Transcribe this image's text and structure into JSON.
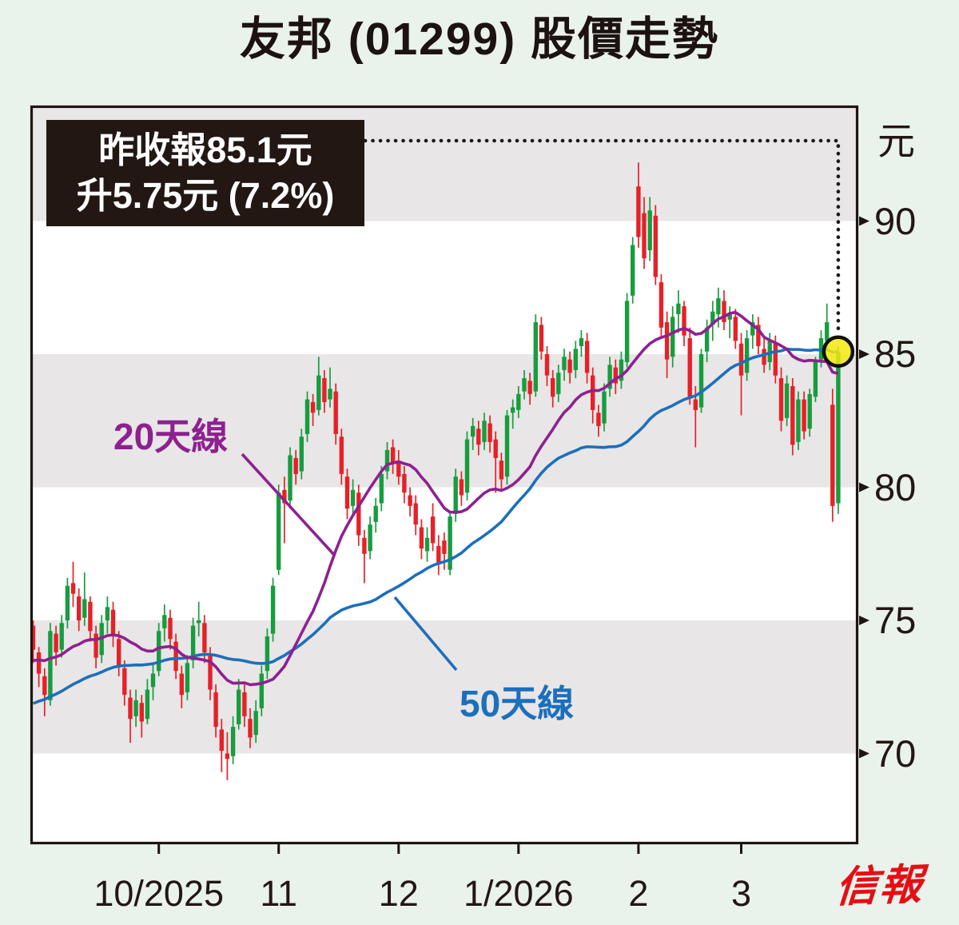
{
  "header": {
    "title": "友邦 (01299) 股價走勢"
  },
  "annotation": {
    "line1": "昨收報85.1元",
    "line2": "升5.75元 (7.2%)"
  },
  "axis": {
    "unit": "元"
  },
  "ma_labels": {
    "ma20": "20天線",
    "ma50": "50天線"
  },
  "logo": {
    "text": "信報"
  },
  "colors": {
    "background": "#eaf2ec",
    "plot_bg": "#ffffff",
    "band_gray": "#e8e6e6",
    "up_candle": "#189c3f",
    "down_candle": "#e52129",
    "ma20": "#8d2190",
    "ma50": "#1c6fbc",
    "axis_ink": "#1d1511",
    "annotation_bg": "#221713",
    "annotation_text": "#ffffff",
    "highlight_fill": "#f4e90e",
    "highlight_stroke": "#111111",
    "logo_red": "#e50f13"
  },
  "chart_data": {
    "type": "candlestick",
    "title": "友邦 (01299) 股價走勢",
    "ylabel": "元",
    "y_ticks": [
      90,
      85,
      80,
      75,
      70
    ],
    "ylim_approx": [
      66.5,
      94.4
    ],
    "grid": "alternating horizontal gray bands between 5-unit price levels",
    "legend_position": "labels with pointer lines inside plot",
    "last_close": 85.1,
    "change": "+5.75",
    "change_pct": "7.2%",
    "month_ticks": [
      {
        "label": "10/2025",
        "day": 22
      },
      {
        "label": "11",
        "day": 43
      },
      {
        "label": "12",
        "day": 64
      },
      {
        "label": "1/2026",
        "day": 85
      },
      {
        "label": "2",
        "day": 106
      },
      {
        "label": "3",
        "day": 124
      }
    ],
    "overlays": [
      {
        "name": "20天線",
        "period": 20,
        "color": "#8d2190"
      },
      {
        "name": "50天線",
        "period": 50,
        "color": "#1c6fbc"
      }
    ],
    "highlight": {
      "day": 141,
      "price": 85.1,
      "marker": "yellow-circle"
    },
    "ohlc": [
      [
        74.8,
        75.0,
        73.4,
        73.9
      ],
      [
        73.8,
        74.0,
        72.5,
        73.0
      ],
      [
        72.9,
        73.2,
        71.4,
        72.2
      ],
      [
        72.0,
        74.9,
        71.8,
        74.6
      ],
      [
        74.5,
        74.8,
        73.3,
        73.8
      ],
      [
        73.9,
        75.2,
        73.6,
        74.9
      ],
      [
        75.0,
        76.6,
        74.7,
        76.3
      ],
      [
        76.4,
        77.2,
        75.5,
        76.0
      ],
      [
        75.9,
        76.2,
        74.6,
        75.0
      ],
      [
        75.1,
        76.8,
        74.8,
        75.8
      ],
      [
        75.7,
        75.9,
        74.2,
        74.6
      ],
      [
        74.5,
        74.8,
        73.2,
        73.6
      ],
      [
        73.7,
        75.2,
        73.4,
        74.9
      ],
      [
        75.0,
        75.9,
        74.5,
        75.5
      ],
      [
        75.4,
        75.7,
        74.0,
        74.4
      ],
      [
        74.3,
        74.6,
        72.9,
        73.3
      ],
      [
        73.2,
        73.5,
        71.8,
        72.2
      ],
      [
        72.1,
        72.4,
        70.4,
        71.3
      ],
      [
        71.4,
        72.4,
        71.0,
        72.0
      ],
      [
        71.9,
        72.2,
        70.6,
        71.2
      ],
      [
        71.3,
        72.8,
        71.1,
        72.4
      ],
      [
        72.5,
        73.4,
        72.0,
        73.0
      ],
      [
        73.1,
        74.9,
        72.9,
        74.6
      ],
      [
        74.7,
        75.6,
        74.2,
        75.2
      ],
      [
        75.1,
        75.4,
        73.9,
        74.3
      ],
      [
        74.2,
        74.5,
        72.8,
        73.1
      ],
      [
        73.0,
        73.3,
        71.7,
        72.2
      ],
      [
        72.3,
        73.7,
        72.0,
        73.4
      ],
      [
        73.5,
        75.1,
        73.2,
        74.8
      ],
      [
        74.9,
        75.7,
        74.4,
        75.0
      ],
      [
        74.9,
        75.2,
        73.4,
        73.8
      ],
      [
        73.7,
        74.0,
        72.0,
        72.4
      ],
      [
        72.3,
        72.6,
        70.6,
        71.0
      ],
      [
        70.9,
        71.3,
        69.3,
        70.1
      ],
      [
        70.0,
        70.8,
        69.0,
        69.8
      ],
      [
        69.9,
        71.4,
        69.6,
        71.0
      ],
      [
        71.1,
        72.8,
        70.9,
        72.4
      ],
      [
        72.3,
        72.6,
        71.0,
        71.4
      ],
      [
        71.3,
        71.7,
        70.2,
        70.6
      ],
      [
        70.7,
        72.0,
        70.4,
        71.6
      ],
      [
        71.7,
        73.3,
        71.4,
        73.0
      ],
      [
        73.1,
        74.7,
        72.8,
        74.4
      ],
      [
        74.5,
        76.6,
        74.2,
        76.3
      ],
      [
        76.9,
        80.1,
        76.7,
        79.8
      ],
      [
        79.9,
        80.4,
        77.9,
        79.4
      ],
      [
        79.5,
        81.5,
        79.2,
        81.2
      ],
      [
        81.1,
        81.4,
        80.1,
        80.5
      ],
      [
        80.6,
        82.2,
        80.3,
        81.9
      ],
      [
        82.0,
        83.6,
        81.7,
        83.3
      ],
      [
        83.2,
        83.5,
        82.3,
        82.8
      ],
      [
        82.9,
        84.9,
        82.7,
        84.2
      ],
      [
        84.1,
        84.4,
        82.8,
        83.2
      ],
      [
        83.3,
        84.5,
        83.0,
        83.7
      ],
      [
        83.6,
        83.9,
        81.6,
        82.0
      ],
      [
        81.9,
        82.2,
        80.1,
        80.5
      ],
      [
        80.4,
        80.7,
        78.8,
        79.2
      ],
      [
        79.3,
        80.3,
        78.9,
        79.9
      ],
      [
        79.8,
        80.1,
        77.8,
        78.2
      ],
      [
        78.1,
        78.4,
        76.4,
        77.5
      ],
      [
        77.6,
        78.9,
        77.3,
        78.6
      ],
      [
        78.7,
        79.6,
        78.3,
        79.3
      ],
      [
        79.4,
        80.8,
        79.1,
        80.5
      ],
      [
        80.6,
        81.7,
        80.3,
        81.4
      ],
      [
        81.5,
        81.8,
        80.5,
        80.9
      ],
      [
        81.0,
        81.4,
        80.1,
        80.4
      ],
      [
        80.5,
        80.8,
        79.4,
        79.8
      ],
      [
        79.7,
        80.0,
        78.9,
        79.3
      ],
      [
        79.4,
        79.7,
        78.2,
        78.6
      ],
      [
        78.5,
        78.8,
        77.3,
        77.7
      ],
      [
        77.6,
        78.5,
        77.2,
        78.1
      ],
      [
        78.9,
        79.4,
        77.6,
        77.9
      ],
      [
        77.8,
        78.2,
        76.7,
        77.1
      ],
      [
        78.0,
        78.3,
        76.9,
        77.5
      ],
      [
        76.9,
        79.1,
        76.7,
        78.9
      ],
      [
        79.0,
        80.7,
        78.7,
        80.4
      ],
      [
        80.3,
        80.6,
        79.3,
        79.7
      ],
      [
        79.8,
        82.1,
        79.5,
        81.8
      ],
      [
        81.9,
        82.6,
        81.4,
        82.3
      ],
      [
        82.2,
        82.5,
        81.2,
        81.6
      ],
      [
        81.7,
        82.8,
        81.4,
        82.5
      ],
      [
        82.4,
        82.7,
        81.3,
        81.7
      ],
      [
        81.8,
        82.1,
        79.8,
        81.1
      ],
      [
        81.0,
        81.3,
        79.9,
        80.3
      ],
      [
        80.4,
        82.9,
        80.1,
        82.7
      ],
      [
        82.8,
        83.3,
        82.2,
        83.0
      ],
      [
        82.9,
        83.8,
        82.6,
        83.5
      ],
      [
        83.6,
        84.4,
        83.3,
        84.1
      ],
      [
        84.0,
        84.3,
        83.1,
        83.5
      ],
      [
        83.6,
        86.5,
        83.4,
        86.2
      ],
      [
        86.1,
        86.4,
        84.8,
        85.1
      ],
      [
        85.0,
        85.3,
        83.8,
        84.2
      ],
      [
        84.1,
        84.4,
        83.0,
        83.4
      ],
      [
        83.5,
        84.6,
        83.2,
        84.3
      ],
      [
        84.4,
        85.2,
        84.0,
        84.9
      ],
      [
        84.8,
        85.1,
        83.9,
        84.3
      ],
      [
        84.4,
        85.5,
        84.1,
        85.2
      ],
      [
        85.3,
        85.9,
        84.9,
        85.6
      ],
      [
        85.5,
        85.8,
        83.9,
        84.3
      ],
      [
        84.2,
        84.5,
        82.4,
        82.9
      ],
      [
        82.8,
        83.1,
        81.9,
        82.3
      ],
      [
        82.4,
        83.9,
        82.1,
        83.6
      ],
      [
        83.7,
        84.9,
        83.4,
        84.6
      ],
      [
        84.5,
        84.8,
        83.5,
        83.9
      ],
      [
        84.0,
        85.1,
        83.7,
        84.8
      ],
      [
        84.7,
        87.3,
        84.5,
        87.0
      ],
      [
        87.2,
        89.4,
        86.9,
        89.1
      ],
      [
        91.3,
        92.2,
        89.0,
        89.4
      ],
      [
        90.3,
        90.9,
        88.2,
        88.6
      ],
      [
        88.9,
        90.9,
        88.5,
        90.4
      ],
      [
        90.2,
        90.6,
        87.6,
        87.9
      ],
      [
        87.7,
        88.0,
        85.6,
        86.0
      ],
      [
        86.2,
        86.6,
        84.1,
        84.8
      ],
      [
        84.9,
        86.8,
        84.5,
        86.4
      ],
      [
        86.5,
        87.4,
        85.8,
        86.9
      ],
      [
        86.8,
        87.0,
        85.3,
        85.7
      ],
      [
        85.6,
        86.0,
        83.1,
        83.4
      ],
      [
        83.3,
        83.8,
        81.5,
        82.9
      ],
      [
        83.0,
        85.2,
        82.8,
        85.0
      ],
      [
        85.1,
        86.3,
        84.7,
        86.0
      ],
      [
        86.1,
        87.0,
        85.5,
        86.6
      ],
      [
        86.5,
        87.5,
        86.0,
        87.1
      ],
      [
        87.0,
        87.4,
        85.9,
        86.2
      ],
      [
        86.3,
        86.8,
        85.6,
        86.5
      ],
      [
        86.4,
        86.7,
        85.2,
        85.5
      ],
      [
        85.4,
        85.8,
        82.7,
        84.2
      ],
      [
        84.3,
        85.9,
        84.0,
        85.6
      ],
      [
        85.7,
        86.5,
        85.2,
        86.2
      ],
      [
        86.1,
        86.4,
        85.0,
        85.3
      ],
      [
        85.2,
        85.6,
        84.3,
        84.6
      ],
      [
        84.7,
        85.8,
        84.4,
        85.5
      ],
      [
        85.4,
        85.7,
        83.9,
        84.2
      ],
      [
        84.1,
        84.5,
        82.1,
        82.5
      ],
      [
        82.6,
        84.2,
        82.3,
        83.9
      ],
      [
        83.8,
        84.1,
        81.2,
        81.6
      ],
      [
        81.7,
        83.6,
        81.4,
        83.3
      ],
      [
        83.3,
        83.6,
        81.8,
        82.1
      ],
      [
        82.2,
        83.7,
        81.9,
        83.5
      ],
      [
        83.4,
        84.9,
        83.2,
        84.7
      ],
      [
        84.8,
        85.9,
        84.5,
        85.6
      ],
      [
        85.5,
        86.9,
        85.2,
        86.2
      ],
      [
        83.1,
        83.7,
        78.7,
        79.3
      ],
      [
        79.4,
        85.3,
        79.0,
        85.1
      ]
    ]
  }
}
